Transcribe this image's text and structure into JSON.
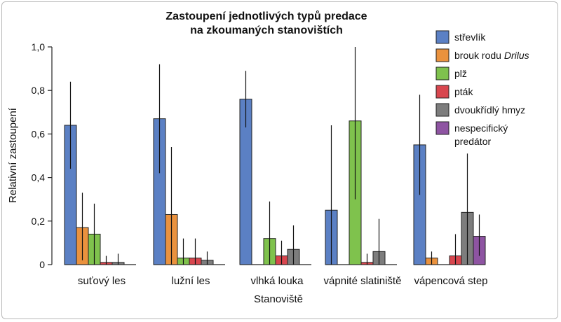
{
  "chart_data": {
    "type": "bar",
    "title": [
      "Zastoupení jednotlivých typů predace",
      "na zkoumaných stanovištích"
    ],
    "xlabel": "Stanoviště",
    "ylabel": "Relativní zastoupení",
    "ylim": [
      0,
      1.0
    ],
    "yticks": [
      0,
      0.2,
      0.4,
      0.6,
      0.8,
      1.0
    ],
    "ytick_labels": [
      "0",
      "0,2",
      "0,4",
      "0,6",
      "0,8",
      "1,0"
    ],
    "categories": [
      "suťový les",
      "lužní les",
      "vlhká louka",
      "vápnité slatiniště",
      "vápencová step"
    ],
    "series": [
      {
        "name": "střevlík",
        "color": "#5b80c4",
        "values": [
          0.64,
          0.67,
          0.76,
          0.25,
          0.55
        ],
        "err_low": [
          0.44,
          0.42,
          0.63,
          0.0,
          0.32
        ],
        "err_high": [
          0.84,
          0.92,
          0.89,
          0.64,
          0.78
        ]
      },
      {
        "name_parts": [
          "brouk rodu ",
          "Drilus"
        ],
        "name_italic": [
          false,
          true
        ],
        "color": "#ea923e",
        "values": [
          0.17,
          0.23,
          0.0,
          0.0,
          0.03
        ],
        "err_low": [
          0.02,
          0.0,
          0.0,
          0.0,
          0.0
        ],
        "err_high": [
          0.33,
          0.54,
          0.0,
          0.0,
          0.06
        ]
      },
      {
        "name": "plž",
        "color": "#7fc24d",
        "values": [
          0.14,
          0.03,
          0.12,
          0.66,
          0.0
        ],
        "err_low": [
          0.0,
          0.0,
          0.0,
          0.3,
          0.0
        ],
        "err_high": [
          0.28,
          0.12,
          0.29,
          1.0,
          0.0
        ]
      },
      {
        "name": "pták",
        "color": "#d8464e",
        "values": [
          0.01,
          0.03,
          0.04,
          0.01,
          0.04
        ],
        "err_low": [
          0.0,
          0.0,
          0.0,
          0.0,
          0.0
        ],
        "err_high": [
          0.04,
          0.12,
          0.11,
          0.05,
          0.14
        ]
      },
      {
        "name": "dvoukřídlý hmyz",
        "color": "#7d7d7d",
        "values": [
          0.01,
          0.02,
          0.07,
          0.06,
          0.24
        ],
        "err_low": [
          0.0,
          0.0,
          0.0,
          0.0,
          0.0
        ],
        "err_high": [
          0.05,
          0.06,
          0.18,
          0.21,
          0.51
        ]
      },
      {
        "name_lines": [
          "nespecifický",
          "predátor"
        ],
        "color": "#8e54a2",
        "values": [
          0.0,
          0.0,
          0.0,
          0.0,
          0.13
        ],
        "err_low": [
          0.0,
          0.0,
          0.0,
          0.0,
          0.04
        ],
        "err_high": [
          0.0,
          0.0,
          0.0,
          0.0,
          0.23
        ]
      }
    ],
    "legend_position": "right"
  }
}
